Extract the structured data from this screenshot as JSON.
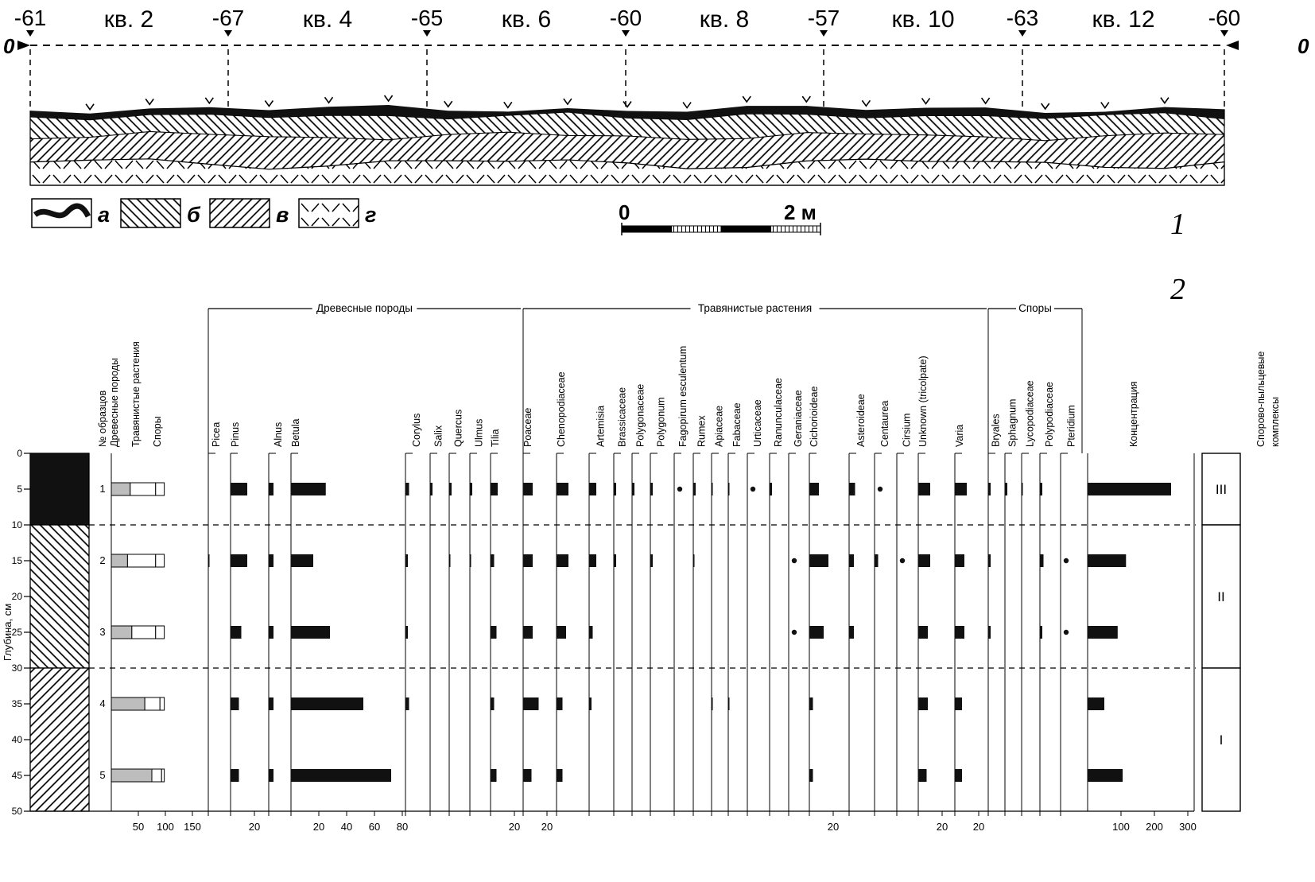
{
  "panel_labels": {
    "profile": "1",
    "pollen": "2"
  },
  "chart_data": [
    {
      "type": "cross-section-profile",
      "quarters": [
        "кв. 2",
        "кв. 4",
        "кв. 6",
        "кв. 8",
        "кв. 10",
        "кв. 12"
      ],
      "elevations": [
        "-61",
        "-67",
        "-65",
        "-60",
        "-57",
        "-63",
        "-60"
      ],
      "datum_label_left": "0",
      "datum_label_right": "0",
      "legend": [
        {
          "key": "а",
          "pattern": "topsoil-wavy-band"
        },
        {
          "key": "б",
          "pattern": "hatch-back"
        },
        {
          "key": "в",
          "pattern": "hatch-forward"
        },
        {
          "key": "г",
          "pattern": "hatch-cross"
        }
      ],
      "scale_bar": {
        "start_label": "0",
        "end_label": "2 м"
      }
    },
    {
      "type": "bar",
      "kind": "pollen-diagram",
      "depth_axis_label": "Глубина, см",
      "depth_ticks": [
        0,
        5,
        10,
        15,
        20,
        25,
        30,
        35,
        40,
        45,
        50
      ],
      "sample_header": "№ образцов",
      "samples": [
        "1",
        "2",
        "3",
        "4",
        "5"
      ],
      "sample_depths_cm": [
        5,
        15,
        25,
        35,
        45
      ],
      "zone_boundaries_cm": [
        10,
        30
      ],
      "lithology": [
        {
          "from_cm": 0,
          "to_cm": 10,
          "pattern": "solid-black"
        },
        {
          "from_cm": 10,
          "to_cm": 30,
          "pattern": "hatch-back"
        },
        {
          "from_cm": 30,
          "to_cm": 50,
          "pattern": "hatch-forward"
        }
      ],
      "summary": {
        "headers": [
          "Древесные породы",
          "Травянистые растения",
          "Споры"
        ],
        "ticks": [
          50,
          100,
          150
        ],
        "rows": [
          {
            "sample": "1",
            "values": [
              35,
              47,
              16
            ]
          },
          {
            "sample": "2",
            "values": [
              30,
              52,
              16
            ]
          },
          {
            "sample": "3",
            "values": [
              38,
              44,
              16
            ]
          },
          {
            "sample": "4",
            "values": [
              62,
              28,
              8
            ]
          },
          {
            "sample": "5",
            "values": [
              75,
              18,
              5
            ]
          }
        ]
      },
      "groups": [
        {
          "name": "Древесные породы"
        },
        {
          "name": "Травянистые растения"
        },
        {
          "name": "Споры"
        }
      ],
      "taxa": [
        {
          "name": "Picea",
          "group": "Древесные породы",
          "values": [
            0,
            1,
            0,
            0,
            0
          ]
        },
        {
          "name": "Pinus",
          "group": "Древесные породы",
          "values": [
            14,
            14,
            9,
            7,
            7
          ],
          "ticks": [
            20
          ]
        },
        {
          "name": "Alnus",
          "group": "Древесные породы",
          "values": [
            4,
            4,
            4,
            4,
            4
          ]
        },
        {
          "name": "Betula",
          "group": "Древесные породы",
          "values": [
            25,
            16,
            28,
            52,
            72
          ],
          "ticks": [
            20,
            40,
            60,
            80
          ]
        },
        {
          "name": "Corylus",
          "group": "Древесные породы",
          "values": [
            3,
            2,
            2,
            3,
            0
          ]
        },
        {
          "name": "Salix",
          "group": "Древесные породы",
          "values": [
            2,
            0,
            0,
            0,
            0
          ]
        },
        {
          "name": "Quercus",
          "group": "Древесные породы",
          "values": [
            2,
            1,
            0,
            0,
            0
          ]
        },
        {
          "name": "Ulmus",
          "group": "Древесные породы",
          "values": [
            2,
            1,
            0,
            0,
            0
          ]
        },
        {
          "name": "Tilia",
          "group": "Древесные породы",
          "values": [
            6,
            3,
            5,
            3,
            5
          ],
          "ticks": [
            20
          ]
        },
        {
          "name": "Poaceae",
          "group": "Травянистые растения",
          "values": [
            8,
            8,
            8,
            13,
            7
          ],
          "ticks": [
            20
          ]
        },
        {
          "name": "Chenopodiaceae",
          "group": "Травянистые растения",
          "values": [
            10,
            10,
            8,
            5,
            5
          ]
        },
        {
          "name": "Artemisia",
          "group": "Травянистые растения",
          "values": [
            6,
            6,
            3,
            2,
            0
          ]
        },
        {
          "name": "Brassicaceae",
          "group": "Травянистые растения",
          "values": [
            2,
            2,
            0,
            0,
            0
          ]
        },
        {
          "name": "Polygonaceae",
          "group": "Травянистые растения",
          "values": [
            2,
            0,
            0,
            0,
            0
          ]
        },
        {
          "name": "Polygonum",
          "group": "Травянистые растения",
          "values": [
            2,
            2,
            0,
            0,
            0
          ]
        },
        {
          "name": "Fagopirum esculentum",
          "group": "Травянистые растения",
          "values": [
            0,
            0,
            0,
            0,
            0
          ],
          "dots": [
            true,
            false,
            false,
            false,
            false
          ]
        },
        {
          "name": "Rumex",
          "group": "Травянистые растения",
          "values": [
            2,
            1,
            0,
            0,
            0
          ]
        },
        {
          "name": "Apiaceae",
          "group": "Травянистые растения",
          "values": [
            1,
            0,
            0,
            1,
            0
          ]
        },
        {
          "name": "Fabaceae",
          "group": "Травянистые растения",
          "values": [
            1,
            0,
            0,
            1,
            0
          ]
        },
        {
          "name": "Urticaceae",
          "group": "Травянистые растения",
          "values": [
            0,
            0,
            0,
            0,
            0
          ],
          "dots": [
            true,
            false,
            false,
            false,
            false
          ]
        },
        {
          "name": "Ranunculaceae",
          "group": "Травянистые растения",
          "values": [
            2,
            0,
            0,
            0,
            0
          ]
        },
        {
          "name": "Geraniaceae",
          "group": "Травянистые растения",
          "values": [
            0,
            0,
            0,
            0,
            0
          ],
          "dots": [
            false,
            true,
            true,
            false,
            false
          ]
        },
        {
          "name": "Cichorioideae",
          "group": "Травянистые растения",
          "values": [
            8,
            16,
            12,
            3,
            3
          ],
          "ticks": [
            20
          ]
        },
        {
          "name": "Asteroideae",
          "group": "Травянистые растения",
          "values": [
            5,
            4,
            4,
            0,
            0
          ]
        },
        {
          "name": "Centaurea",
          "group": "Травянистые растения",
          "values": [
            0,
            3,
            0,
            0,
            0
          ],
          "dots": [
            true,
            false,
            false,
            false,
            false
          ]
        },
        {
          "name": "Cirsium",
          "group": "Травянистые растения",
          "values": [
            0,
            0,
            0,
            0,
            0
          ],
          "dots": [
            false,
            true,
            false,
            false,
            false
          ]
        },
        {
          "name": "Unknown (tricolpate)",
          "group": "Травянистые растения",
          "values": [
            10,
            10,
            8,
            8,
            7
          ],
          "ticks": [
            20
          ]
        },
        {
          "name": "Varia",
          "group": "Травянистые растения",
          "values": [
            10,
            8,
            8,
            6,
            6
          ],
          "ticks": [
            20
          ]
        },
        {
          "name": "Bryales",
          "group": "Споры",
          "values": [
            2,
            2,
            2,
            0,
            0
          ]
        },
        {
          "name": "Sphagnum",
          "group": "Споры",
          "values": [
            2,
            0,
            0,
            0,
            0
          ]
        },
        {
          "name": "Lycopodiaceae",
          "group": "Споры",
          "values": [
            1,
            0,
            0,
            0,
            0
          ]
        },
        {
          "name": "Polypodiaceae",
          "group": "Споры",
          "values": [
            2,
            3,
            2,
            0,
            0
          ]
        },
        {
          "name": "Pteridium",
          "group": "Споры",
          "values": [
            0,
            0,
            0,
            0,
            0
          ],
          "dots": [
            false,
            true,
            true,
            false,
            false
          ]
        }
      ],
      "concentration": {
        "name": "Концентрация",
        "values": [
          250,
          115,
          90,
          50,
          105
        ],
        "ticks": [
          100,
          200,
          300
        ]
      },
      "zones_header": "Спорово-пыльцевые комплексы",
      "zones": [
        {
          "label": "III",
          "from_cm": 0,
          "to_cm": 10
        },
        {
          "label": "II",
          "from_cm": 10,
          "to_cm": 30
        },
        {
          "label": "I",
          "from_cm": 30,
          "to_cm": 50
        }
      ]
    }
  ]
}
